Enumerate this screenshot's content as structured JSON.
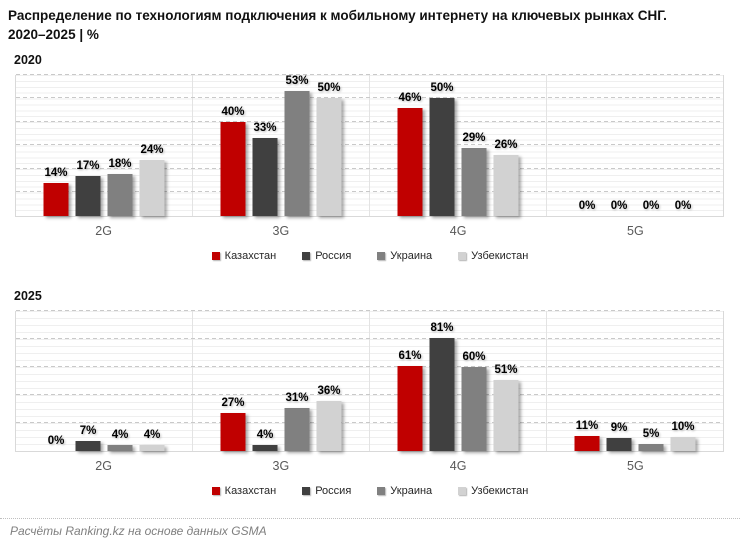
{
  "header": {
    "title_line1": "Распределение по технологиям подключения к мобильному интернету на ключевых рынках СНГ.",
    "title_line2": "2020–2025 | %"
  },
  "colors": {
    "kazakhstan": "#C00000",
    "russia": "#404040",
    "ukraine": "#808080",
    "uzbekistan": "#D2D2D2",
    "major_gridline": "#C9C9C9",
    "minor_gridline": "#EFEFEF",
    "plot_border": "#D9D9D9",
    "category_label": "#595959",
    "footer_text": "#7F7F7F"
  },
  "chart_data": [
    {
      "type": "bar",
      "title": "2020",
      "categories": [
        "2G",
        "3G",
        "4G",
        "5G"
      ],
      "series": [
        {
          "name": "Казахстан",
          "color": "#C00000",
          "values": [
            14,
            40,
            46,
            0
          ]
        },
        {
          "name": "Россия",
          "color": "#404040",
          "values": [
            17,
            33,
            50,
            0
          ]
        },
        {
          "name": "Украина",
          "color": "#808080",
          "values": [
            18,
            53,
            29,
            0
          ]
        },
        {
          "name": "Узбекистан",
          "color": "#D2D2D2",
          "values": [
            24,
            50,
            26,
            0
          ]
        }
      ],
      "ylim": [
        0,
        60
      ],
      "major_gridline_step": 10,
      "minor_gridline_step": 2.5,
      "grid": true,
      "data_label_suffix": "%",
      "legend_position": "bottom"
    },
    {
      "type": "bar",
      "title": "2025",
      "categories": [
        "2G",
        "3G",
        "4G",
        "5G"
      ],
      "series": [
        {
          "name": "Казахстан",
          "color": "#C00000",
          "values": [
            0,
            27,
            61,
            11
          ]
        },
        {
          "name": "Россия",
          "color": "#404040",
          "values": [
            7,
            4,
            81,
            9
          ]
        },
        {
          "name": "Украина",
          "color": "#808080",
          "values": [
            4,
            31,
            60,
            5
          ]
        },
        {
          "name": "Узбекистан",
          "color": "#D2D2D2",
          "values": [
            4,
            36,
            51,
            10
          ]
        }
      ],
      "ylim": [
        0,
        100
      ],
      "major_gridline_step": 20,
      "minor_gridline_step": 5,
      "grid": true,
      "data_label_suffix": "%",
      "legend_position": "bottom"
    }
  ],
  "footer": {
    "source": "Расчёты Ranking.kz на основе данных GSMA"
  }
}
